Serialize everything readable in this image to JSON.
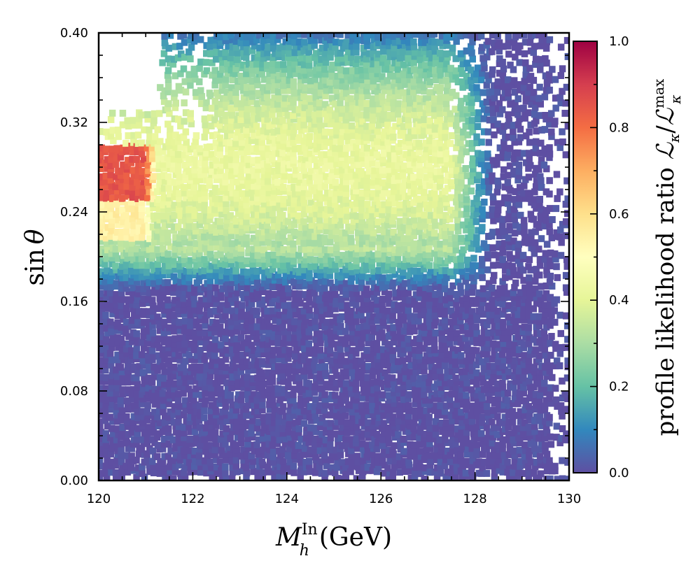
{
  "chart_data": {
    "type": "scatter",
    "title": "",
    "xlabel": "M_h^In (GeV)",
    "xlabel_parts": {
      "symbol": "M",
      "sub": "h",
      "sup": "In",
      "unit": "(GeV)"
    },
    "ylabel": "sin θ",
    "ylabel_parts": {
      "func": "sin",
      "var": "θ"
    },
    "xlim": [
      120,
      130
    ],
    "ylim": [
      0.0,
      0.4
    ],
    "xticks": [
      "120",
      "122",
      "124",
      "126",
      "128",
      "130"
    ],
    "yticks": [
      "0.00",
      "0.08",
      "0.16",
      "0.24",
      "0.32",
      "0.40"
    ],
    "colorbar": {
      "label": "profile likelihood ratio ℒκ/ℒκmax",
      "label_parts": {
        "text": "profile likelihood ratio ",
        "L": "ℒ",
        "sub": "κ",
        "sup": "max"
      },
      "range": [
        0.0,
        1.0
      ],
      "ticks": [
        "0.0",
        "0.2",
        "0.4",
        "0.6",
        "0.8",
        "1.0"
      ],
      "colormap": "Spectral_r",
      "stops": [
        "#5e4fa2",
        "#3288bd",
        "#66c2a5",
        "#abdda4",
        "#e6f598",
        "#ffffbf",
        "#fee08b",
        "#fdae61",
        "#f46d43",
        "#d53e4f",
        "#9e0142"
      ]
    },
    "description_regions": [
      {
        "x_range": [
          120,
          130
        ],
        "y_range": [
          0.0,
          0.17
        ],
        "value": 0.02
      },
      {
        "x_range": [
          122.5,
          127.5
        ],
        "y_range": [
          0.2,
          0.34
        ],
        "value": 0.42
      },
      {
        "x_range": [
          120,
          121.5
        ],
        "y_range": [
          0.25,
          0.3
        ],
        "value": 0.85
      },
      {
        "x_range": [
          120,
          121.5
        ],
        "y_range": [
          0.22,
          0.25
        ],
        "value": 0.55
      }
    ]
  }
}
